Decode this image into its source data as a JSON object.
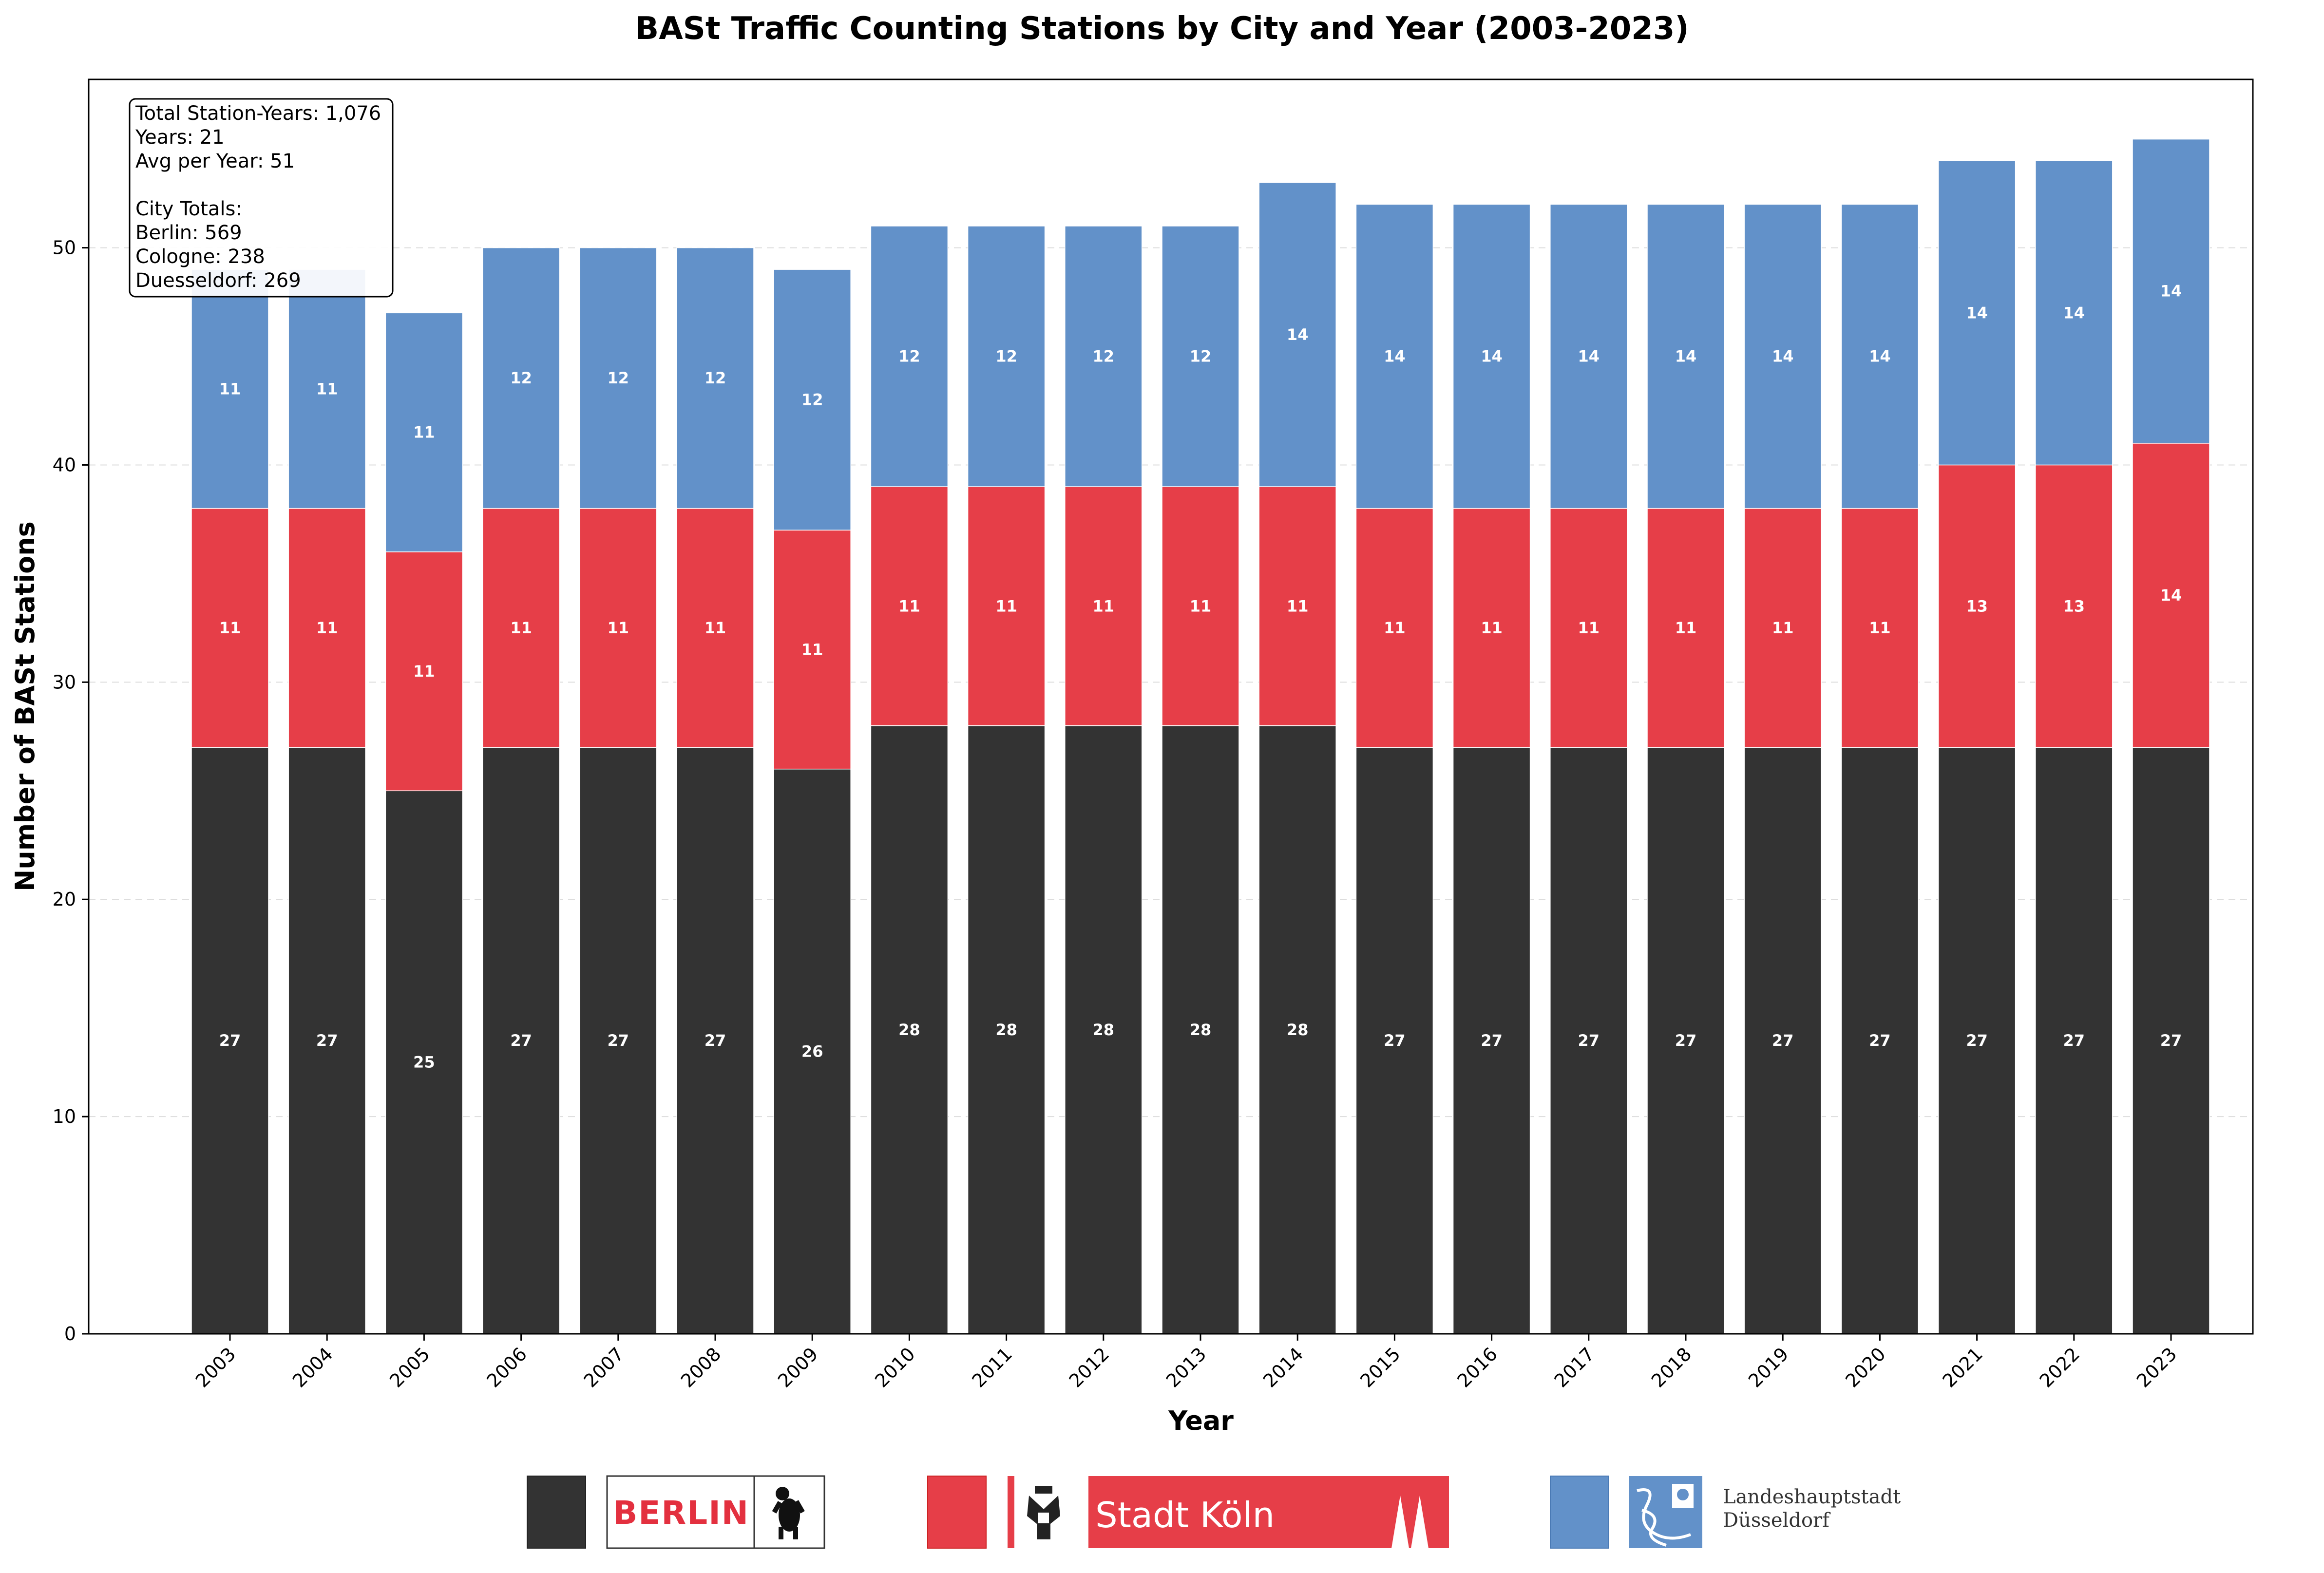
{
  "chart_data": {
    "type": "bar",
    "stacked": true,
    "title": "BASt Traffic Counting Stations by City and Year (2003-2023)",
    "xlabel": "Year",
    "ylabel": "Number of BASt Stations",
    "ylim": [
      0,
      57.75
    ],
    "yticks": [
      0,
      10,
      20,
      30,
      40,
      50
    ],
    "grid": "y-dashed",
    "categories": [
      "2003",
      "2004",
      "2005",
      "2006",
      "2007",
      "2008",
      "2009",
      "2010",
      "2011",
      "2012",
      "2013",
      "2014",
      "2015",
      "2016",
      "2017",
      "2018",
      "2019",
      "2020",
      "2021",
      "2022",
      "2023"
    ],
    "series": [
      {
        "values": [
          27,
          27,
          25,
          27,
          27,
          27,
          26,
          28,
          28,
          28,
          28,
          28,
          27,
          27,
          27,
          27,
          27,
          27,
          27,
          27,
          27
        ],
        "color": "#333333"
      },
      {
        "values": [
          11,
          11,
          11,
          11,
          11,
          11,
          11,
          11,
          11,
          11,
          11,
          11,
          11,
          11,
          11,
          11,
          11,
          11,
          13,
          13,
          14
        ],
        "color": "#e63e48"
      },
      {
        "values": [
          11,
          11,
          11,
          12,
          12,
          12,
          12,
          12,
          12,
          12,
          12,
          14,
          14,
          14,
          14,
          14,
          14,
          14,
          14,
          14,
          14
        ],
        "color": "#6291c9"
      }
    ],
    "annotations": [
      "Total Station-Years: 1,076",
      "Years: 21",
      "Avg per Year: 51",
      "",
      "City Totals:",
      "Berlin: 569",
      "Cologne: 238",
      "Duesseldorf: 269"
    ]
  },
  "logos": {
    "berlin": {
      "text": "BERLIN",
      "icon": "bear-icon",
      "color": "#e3303f"
    },
    "koeln": {
      "text": "Stadt Köln",
      "icon": "eagle-crest-icon",
      "color": "#e63e48"
    },
    "duesseldorf": {
      "line1": "Landeshauptstadt",
      "line2": "Düsseldorf",
      "icon": "lion-crest-icon",
      "color": "#6291c9"
    }
  }
}
